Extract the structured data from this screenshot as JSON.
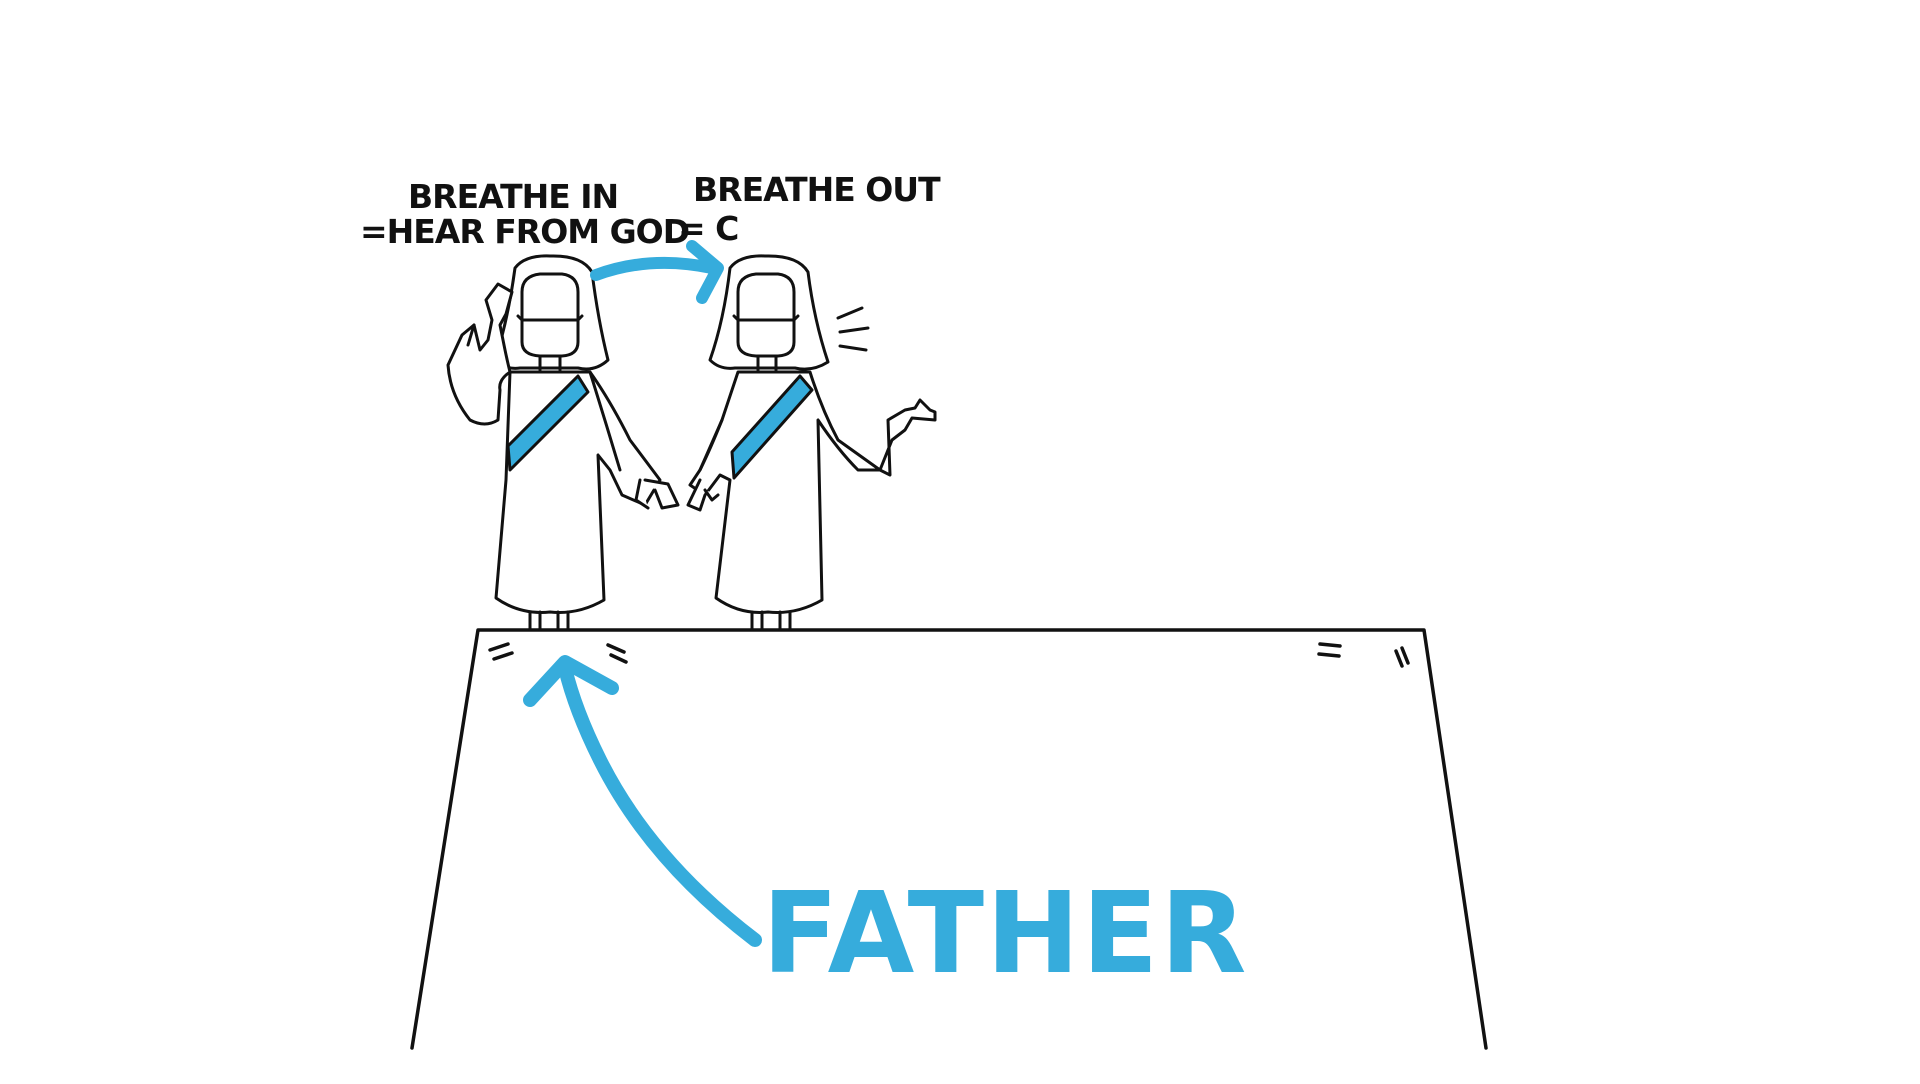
{
  "scene": {
    "breathe_in": {
      "line1": "BREATHE IN",
      "line2": "=HEAR FROM GOD"
    },
    "breathe_out": {
      "line1": "BREATHE OUT",
      "line2": "= C"
    },
    "father_label": "FATHER"
  },
  "colors": {
    "accent": "#36acdc",
    "ink": "#111111",
    "background": "#ffffff"
  },
  "icons": {
    "figure_left": "robed-figure-listening-icon",
    "figure_right": "robed-figure-speaking-icon",
    "arrow_right": "curved-arrow-right-icon",
    "arrow_up": "curved-arrow-up-icon",
    "platform": "platform-outline"
  }
}
